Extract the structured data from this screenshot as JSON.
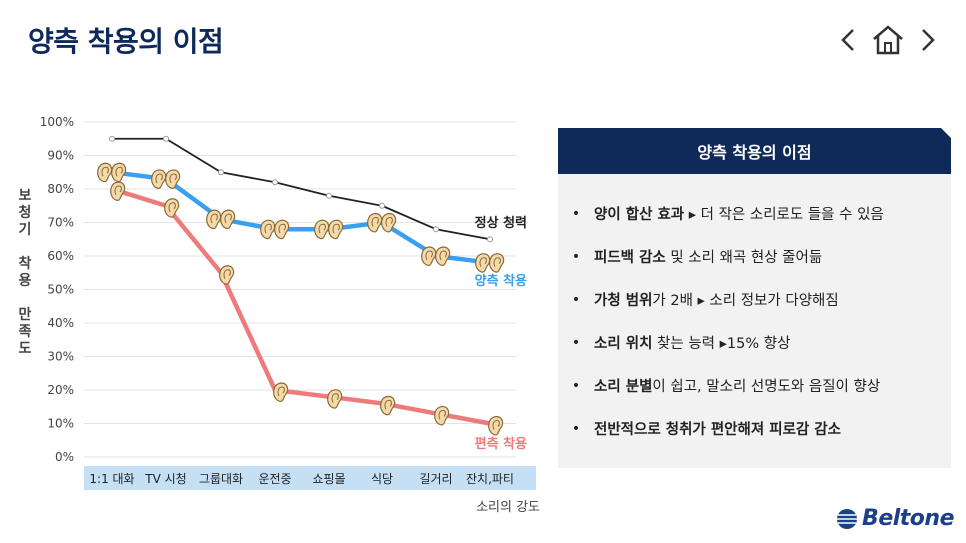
{
  "title": "양측 착용의 이점",
  "nav": {
    "prev": "previous-arrow",
    "home": "home-icon",
    "next": "next-arrow"
  },
  "y_axis_title_chars": [
    "보",
    "청",
    "기",
    "",
    "착",
    "용",
    "",
    "만",
    "족",
    "도"
  ],
  "chart_data": {
    "type": "line",
    "categories": [
      "1:1 대화",
      "TV 시청",
      "그룹대화",
      "운전중",
      "쇼핑몰",
      "식당",
      "길거리",
      "잔치,파티"
    ],
    "xlabel": "소리의 강도",
    "ylabel": "보청기 착용 만족도",
    "ylim": [
      0,
      100
    ],
    "yticks": [
      "0%",
      "10%",
      "20%",
      "30%",
      "40%",
      "50%",
      "60%",
      "70%",
      "80%",
      "90%",
      "100%"
    ],
    "grid": true,
    "series": [
      {
        "name": "정상 청력",
        "color": "#222222",
        "values": [
          95,
          95,
          85,
          82,
          78,
          75,
          68,
          65
        ]
      },
      {
        "name": "양측 착용",
        "color": "#3aa0ee",
        "values": [
          85,
          83,
          71,
          68,
          68,
          70,
          60,
          58
        ]
      },
      {
        "name": "편측 착용",
        "color": "#ee7b7b",
        "values": [
          80,
          75,
          55,
          20,
          18,
          16,
          13,
          10
        ]
      }
    ]
  },
  "panel": {
    "header": "양측 착용의 이점",
    "items": [
      {
        "bold": "양이 합산 효과",
        "rest": " ▸ 더 작은 소리로도 들을 수 있음"
      },
      {
        "bold": "피드백 감소",
        "rest": " 및 소리 왜곡 현상 줄어듦"
      },
      {
        "bold": "가청 범위",
        "rest": "가 2배 ▸ 소리 정보가 다양해짐"
      },
      {
        "bold": "소리 위치",
        "rest": " 찾는 능력 ▸15% 향상"
      },
      {
        "bold": "소리 분별",
        "rest": "이 쉽고, 말소리 선명도와 음질이 향상"
      },
      {
        "bold": "전반적으로 청취가 편안해져 피로감 감소",
        "rest": ""
      }
    ]
  },
  "logo": {
    "text": "Beltone"
  },
  "colors": {
    "title": "#0e2a5a",
    "panel_header": "#0f2a58",
    "axis_band": "#c5e0f5"
  }
}
